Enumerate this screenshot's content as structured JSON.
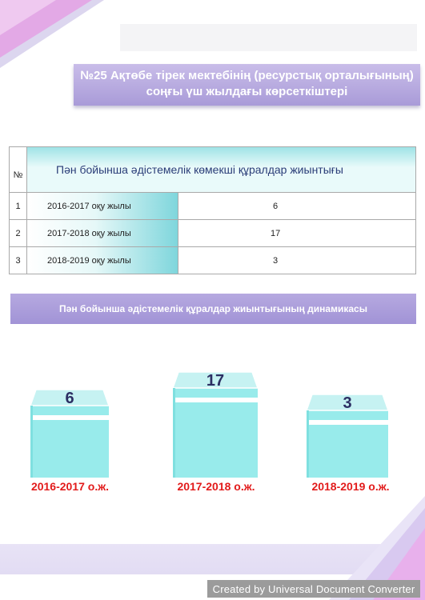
{
  "title": {
    "line1": "№25 Ақтөбе тірек мектебінің (ресурстық орталығының)",
    "line2": "соңғы үш жылдағы көрсеткіштері"
  },
  "table": {
    "num_header": "№",
    "header": "Пән бойынша әдістемелік көмекші құралдар жиынтығы",
    "rows": [
      {
        "num": "1",
        "year": "2016-2017 оқу жылы",
        "value": "6"
      },
      {
        "num": "2",
        "year": "2017-2018 оқу жылы",
        "value": "17"
      },
      {
        "num": "3",
        "year": "2018-2019  оқу жылы",
        "value": "3"
      }
    ]
  },
  "dynamics_title": "Пән бойынша әдістемелік құралдар жиынтығының  динамикасы",
  "chart_data": {
    "type": "bar",
    "categories": [
      "2016-2017 о.ж.",
      "2017-2018 о.ж.",
      "2018-2019 о.ж."
    ],
    "values": [
      6,
      17,
      3
    ],
    "labels": [
      "6",
      "17",
      "3"
    ]
  },
  "colors": {
    "accent_purple": "#a99bd8",
    "teal": "#98ebeb",
    "year_red": "#e21b1b",
    "number_navy": "#2c2f63"
  },
  "watermark": "Created by Universal Document Converter"
}
